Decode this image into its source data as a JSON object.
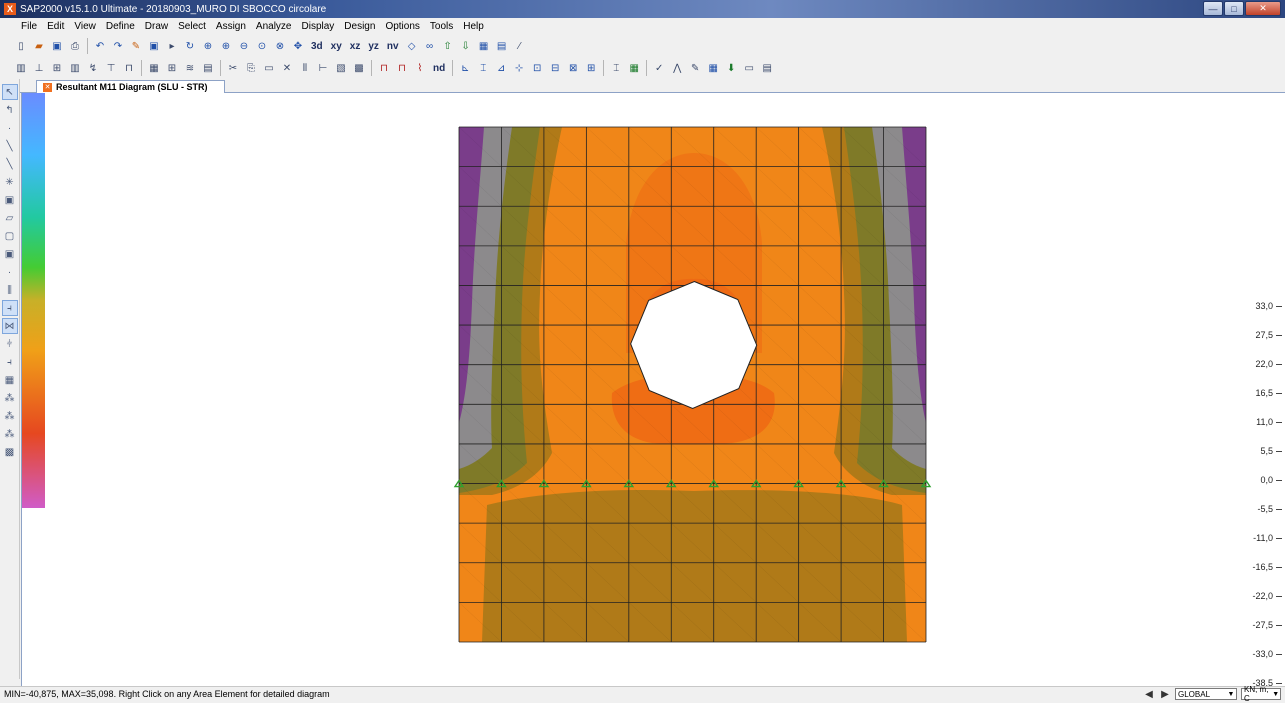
{
  "window": {
    "title": "SAP2000 v15.1.0 Ultimate  - 20180903_MURO DI SBOCCO circolare",
    "app_icon": "X",
    "controls": {
      "minimize": "—",
      "maximize": "□",
      "close": "✕"
    }
  },
  "menubar": {
    "items": [
      "File",
      "Edit",
      "View",
      "Define",
      "Draw",
      "Select",
      "Assign",
      "Analyze",
      "Display",
      "Design",
      "Options",
      "Tools",
      "Help"
    ]
  },
  "toolbar1": {
    "view_labels": [
      "3d",
      "xy",
      "xz",
      "yz",
      "nv"
    ]
  },
  "toolbar2": {
    "unit_label": "nd"
  },
  "document_tab": {
    "label": "Resultant M11 Diagram  (SLU - STR)"
  },
  "legend": {
    "labels": [
      "33,0",
      "27,5",
      "22,0",
      "16,5",
      "11,0",
      "5,5",
      "0,0",
      "-5,5",
      "-11,0",
      "-16,5",
      "-22,0",
      "-27,5",
      "-33,0",
      "-38,5"
    ],
    "colors": {
      "top": "#6a8cff",
      "upper": "#44b8ff",
      "middle": "#22c9a0",
      "lower": "#44cc33",
      "ochre": "#c8b028",
      "orange": "#f0a018",
      "red": "#e64820",
      "bottom": "#d05cc8"
    }
  },
  "status": {
    "message": "MIN=-40,875, MAX=35,098. Right Click on any Area Element for detailed diagram",
    "coord_system": "GLOBAL",
    "units": "KN, m, C"
  },
  "diagram": {
    "colors": {
      "purple": "#7a3d8a",
      "grey": "#8c8a8c",
      "olive": "#7f7a28",
      "ochre": "#b07a18",
      "orange": "#f08618",
      "deep_orange": "#ee6a14",
      "hole": "#ffffff",
      "support": "#2fa02f",
      "mesh": "#222222"
    }
  }
}
